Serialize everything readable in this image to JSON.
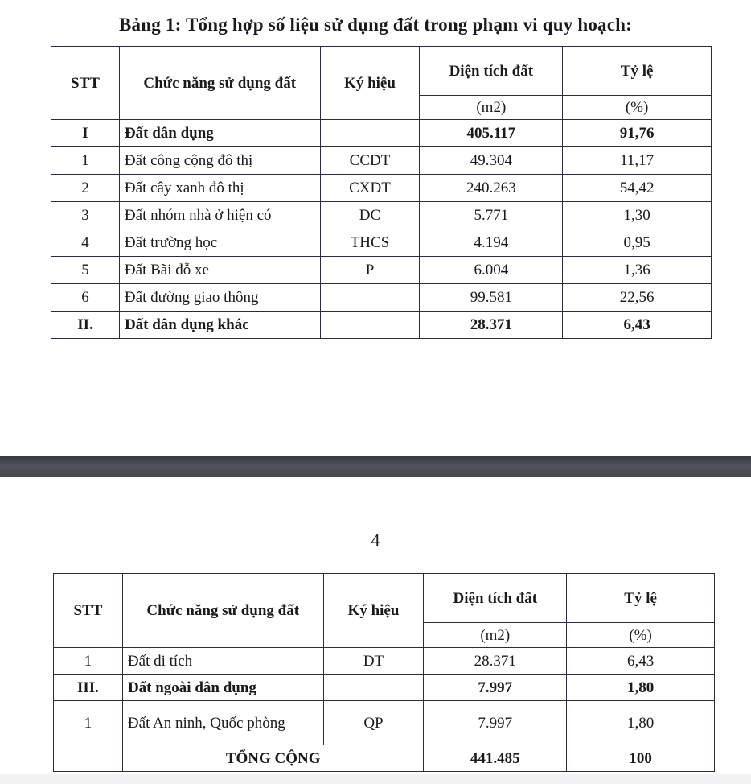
{
  "title": "Bảng 1: Tổng hợp số liệu sử dụng đất trong phạm vi quy hoạch:",
  "header": {
    "stt": "STT",
    "function": "Chức năng sử dụng đất",
    "symbol": "Ký hiệu",
    "area": "Diện tích đất",
    "area_unit": "(m2)",
    "ratio": "Tỷ lệ",
    "ratio_unit": "(%)"
  },
  "table1": [
    {
      "stt": "I",
      "name": "Đất dân dụng",
      "symbol": "",
      "area": "405.117",
      "ratio": "91,76",
      "bold": true
    },
    {
      "stt": "1",
      "name": "Đất công cộng đô thị",
      "symbol": "CCDT",
      "area": "49.304",
      "ratio": "11,17"
    },
    {
      "stt": "2",
      "name": "Đất cây xanh đô thị",
      "symbol": "CXDT",
      "area": "240.263",
      "ratio": "54,42"
    },
    {
      "stt": "3",
      "name": "Đất nhóm nhà ở hiện có",
      "symbol": "DC",
      "area": "5.771",
      "ratio": "1,30"
    },
    {
      "stt": "4",
      "name": "Đất trường học",
      "symbol": "THCS",
      "area": "4.194",
      "ratio": "0,95"
    },
    {
      "stt": "5",
      "name": "Đất Bãi đỗ xe",
      "symbol": "P",
      "area": "6.004",
      "ratio": "1,36"
    },
    {
      "stt": "6",
      "name": "Đất đường giao thông",
      "symbol": "",
      "area": "99.581",
      "ratio": "22,56"
    },
    {
      "stt": "II.",
      "name": "Đất dân dụng khác",
      "symbol": "",
      "area": "28.371",
      "ratio": "6,43",
      "bold": true
    }
  ],
  "page_number": "4",
  "table2": [
    {
      "stt": "1",
      "name": "Đất di tích",
      "symbol": "DT",
      "area": "28.371",
      "ratio": "6,43"
    },
    {
      "stt": "III.",
      "name": "Đất ngoài dân dụng",
      "symbol": "",
      "area": "7.997",
      "ratio": "1,80",
      "bold": true
    },
    {
      "stt": "1",
      "name": "Đất An ninh, Quốc phòng",
      "symbol": "QP",
      "area": "7.997",
      "ratio": "1,80"
    }
  ],
  "total": {
    "label": "TỔNG CỘNG",
    "area": "441.485",
    "ratio": "100"
  }
}
